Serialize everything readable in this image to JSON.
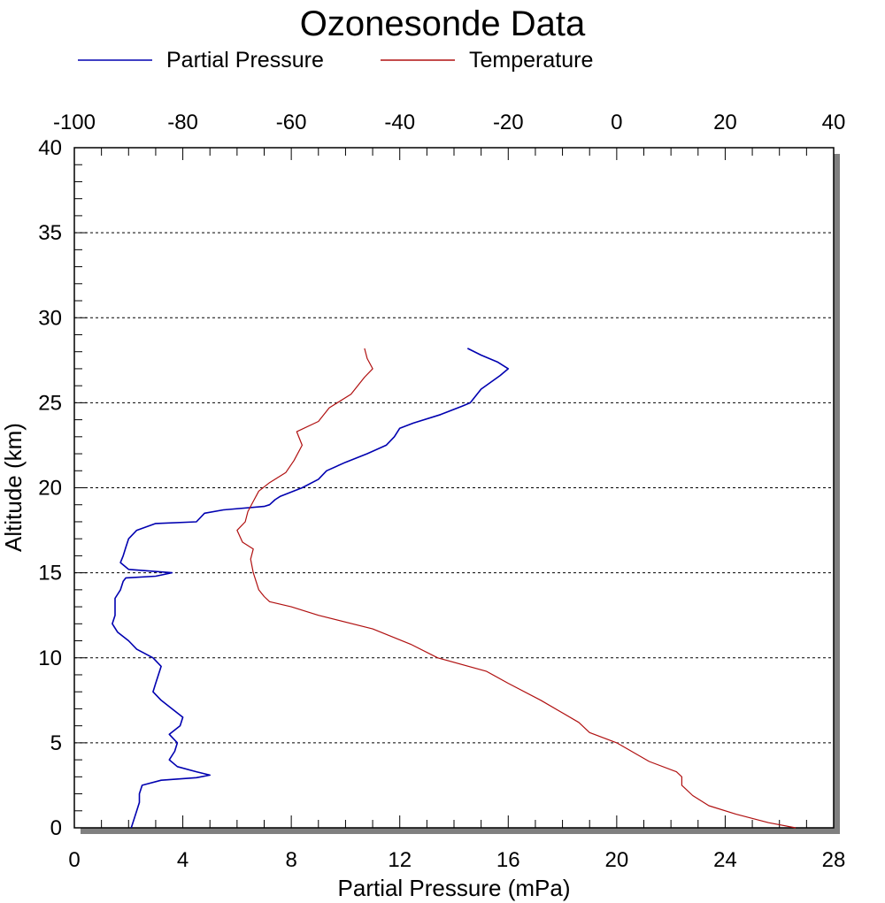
{
  "chart_data": {
    "type": "line",
    "title": "Ozonesonde Data",
    "xlabel": "Partial Pressure (mPa)",
    "ylabel": "Altitude (km)",
    "x_bottom_range": [
      0,
      28
    ],
    "x_bottom_ticks": [
      "0",
      "4",
      "8",
      "12",
      "16",
      "20",
      "24",
      "28"
    ],
    "x_top_range": [
      -100,
      40
    ],
    "x_top_ticks": [
      "-100",
      "-80",
      "-60",
      "-40",
      "-20",
      "0",
      "20",
      "40"
    ],
    "y_range": [
      0,
      40
    ],
    "y_ticks": [
      "0",
      "5",
      "10",
      "15",
      "20",
      "25",
      "30",
      "35",
      "40"
    ],
    "grid": "horizontal dotted",
    "legend_position": "top-left",
    "series": [
      {
        "name": "Partial Pressure",
        "color": "#0000b0",
        "axis": "bottom",
        "points": [
          [
            2.1,
            0.0
          ],
          [
            2.2,
            0.5
          ],
          [
            2.3,
            1.0
          ],
          [
            2.4,
            1.5
          ],
          [
            2.4,
            2.0
          ],
          [
            2.5,
            2.5
          ],
          [
            3.2,
            2.8
          ],
          [
            4.5,
            2.95
          ],
          [
            5.0,
            3.1
          ],
          [
            4.5,
            3.3
          ],
          [
            3.8,
            3.6
          ],
          [
            3.5,
            4.0
          ],
          [
            3.7,
            4.5
          ],
          [
            3.8,
            5.0
          ],
          [
            3.5,
            5.5
          ],
          [
            3.9,
            6.0
          ],
          [
            4.0,
            6.5
          ],
          [
            3.6,
            7.0
          ],
          [
            3.2,
            7.5
          ],
          [
            2.9,
            8.0
          ],
          [
            3.0,
            8.5
          ],
          [
            3.1,
            9.0
          ],
          [
            3.2,
            9.5
          ],
          [
            2.9,
            10.0
          ],
          [
            2.3,
            10.5
          ],
          [
            2.0,
            11.0
          ],
          [
            1.6,
            11.5
          ],
          [
            1.4,
            12.0
          ],
          [
            1.5,
            12.5
          ],
          [
            1.5,
            13.0
          ],
          [
            1.5,
            13.5
          ],
          [
            1.7,
            14.0
          ],
          [
            1.8,
            14.5
          ],
          [
            1.9,
            14.7
          ],
          [
            3.0,
            14.8
          ],
          [
            3.6,
            15.0
          ],
          [
            2.0,
            15.2
          ],
          [
            1.7,
            15.6
          ],
          [
            1.8,
            16.0
          ],
          [
            1.9,
            16.5
          ],
          [
            2.0,
            17.0
          ],
          [
            2.3,
            17.5
          ],
          [
            3.0,
            17.9
          ],
          [
            4.5,
            18.0
          ],
          [
            4.8,
            18.5
          ],
          [
            5.5,
            18.7
          ],
          [
            7.0,
            18.9
          ],
          [
            7.2,
            19.0
          ],
          [
            7.4,
            19.3
          ],
          [
            7.6,
            19.5
          ],
          [
            8.4,
            20.0
          ],
          [
            9.0,
            20.5
          ],
          [
            9.3,
            21.0
          ],
          [
            10.0,
            21.5
          ],
          [
            10.8,
            22.0
          ],
          [
            11.5,
            22.5
          ],
          [
            11.8,
            23.0
          ],
          [
            12.0,
            23.5
          ],
          [
            12.5,
            23.8
          ],
          [
            13.5,
            24.3
          ],
          [
            14.3,
            24.8
          ],
          [
            14.6,
            25.0
          ],
          [
            15.0,
            25.8
          ],
          [
            15.7,
            26.6
          ],
          [
            16.0,
            27.0
          ],
          [
            15.6,
            27.4
          ],
          [
            15.0,
            27.8
          ],
          [
            14.5,
            28.2
          ]
        ]
      },
      {
        "name": "Temperature",
        "color": "#b01010",
        "axis": "top",
        "points": [
          [
            33.0,
            0.0
          ],
          [
            28.0,
            0.3
          ],
          [
            22.0,
            0.8
          ],
          [
            17.0,
            1.3
          ],
          [
            14.0,
            1.9
          ],
          [
            12.0,
            2.5
          ],
          [
            12.0,
            3.0
          ],
          [
            11.0,
            3.3
          ],
          [
            6.0,
            3.9
          ],
          [
            0.0,
            5.0
          ],
          [
            -5.0,
            5.6
          ],
          [
            -7.0,
            6.2
          ],
          [
            -14.0,
            7.5
          ],
          [
            -20.0,
            8.5
          ],
          [
            -24.0,
            9.2
          ],
          [
            -33.0,
            10.0
          ],
          [
            -38.0,
            10.8
          ],
          [
            -45.0,
            11.7
          ],
          [
            -55.0,
            12.5
          ],
          [
            -60.0,
            13.0
          ],
          [
            -64.0,
            13.3
          ],
          [
            -65.0,
            13.6
          ],
          [
            -66.0,
            14.0
          ],
          [
            -66.5,
            14.5
          ],
          [
            -67.0,
            15.0
          ],
          [
            -67.5,
            15.8
          ],
          [
            -67.0,
            16.4
          ],
          [
            -69.0,
            16.8
          ],
          [
            -70.0,
            17.5
          ],
          [
            -68.5,
            18.0
          ],
          [
            -68.0,
            18.6
          ],
          [
            -67.0,
            19.2
          ],
          [
            -66.0,
            19.8
          ],
          [
            -64.0,
            20.3
          ],
          [
            -61.0,
            20.9
          ],
          [
            -59.5,
            21.6
          ],
          [
            -58.0,
            22.5
          ],
          [
            -59.0,
            23.3
          ],
          [
            -55.0,
            23.9
          ],
          [
            -53.0,
            24.7
          ],
          [
            -49.0,
            25.5
          ],
          [
            -46.5,
            26.5
          ],
          [
            -45.0,
            27.0
          ],
          [
            -46.0,
            27.6
          ],
          [
            -46.5,
            28.2
          ]
        ]
      }
    ]
  }
}
